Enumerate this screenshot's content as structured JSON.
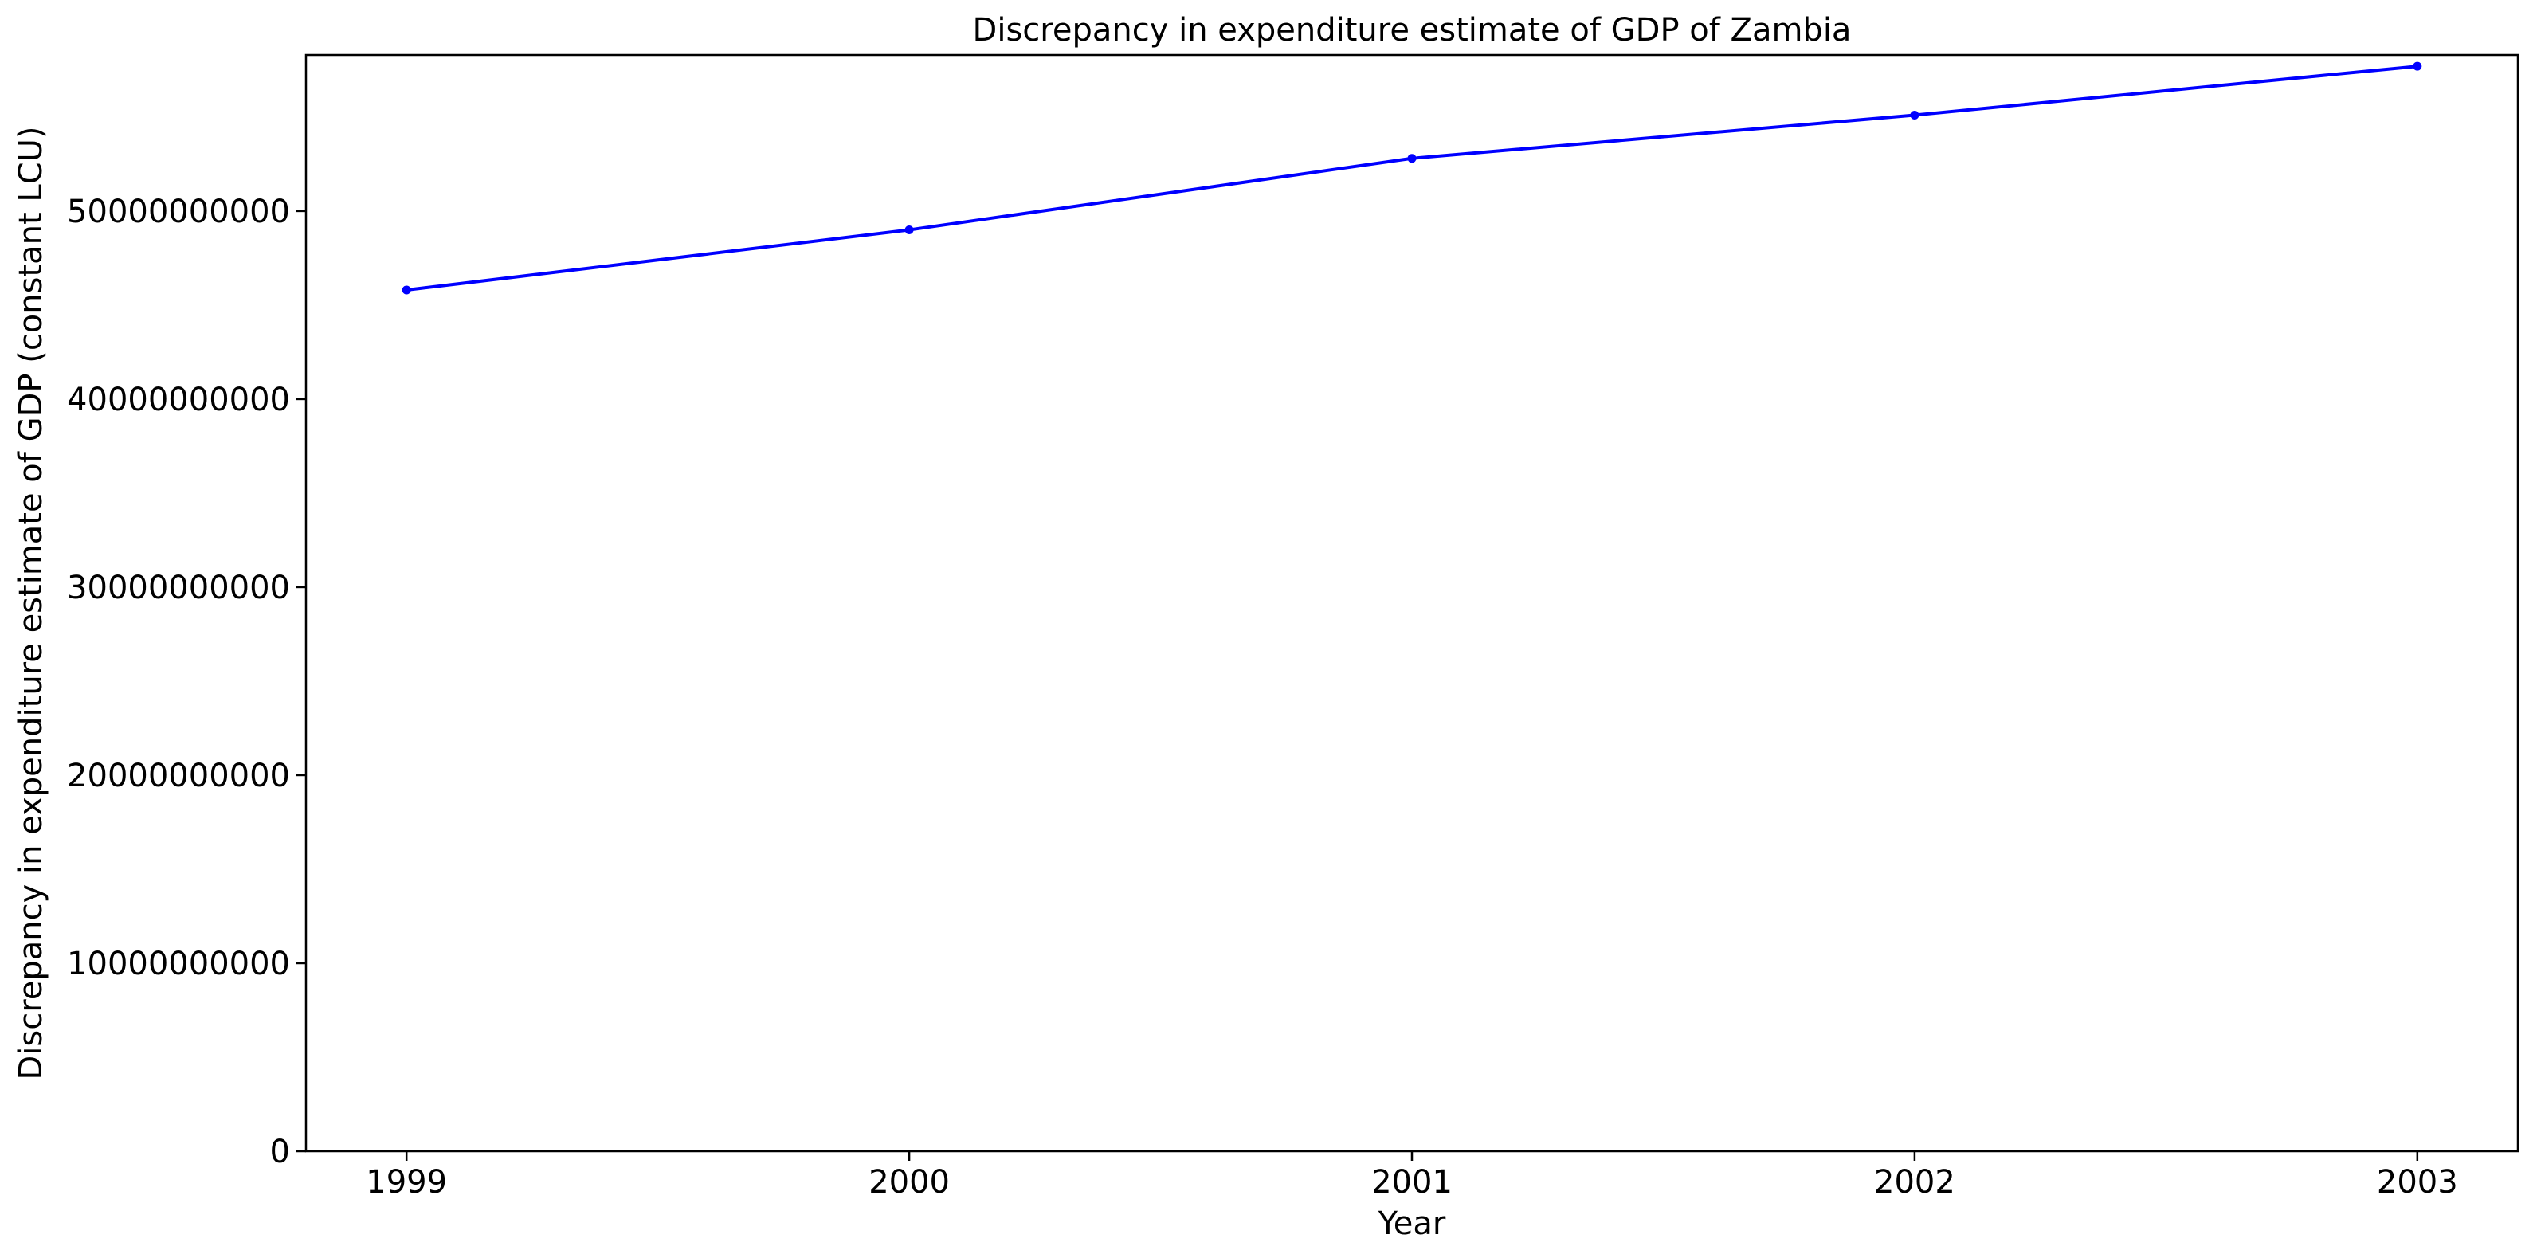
{
  "chart_data": {
    "type": "line",
    "title": "Discrepancy in expenditure estimate of GDP of Zambia",
    "xlabel": "Year",
    "ylabel": "Discrepancy in expenditure estimate of GDP (constant LCU)",
    "x": [
      "1999",
      "2000",
      "2001",
      "2002",
      "2003"
    ],
    "series": [
      {
        "color": "#0000ff",
        "marker": "circle",
        "values": [
          45800000000,
          49000000000,
          52800000000,
          55100000000,
          57700000000
        ]
      }
    ],
    "yticks": [
      0,
      10000000000,
      20000000000,
      30000000000,
      40000000000,
      50000000000
    ],
    "ytick_labels": [
      "0",
      "10000000000",
      "20000000000",
      "30000000000",
      "40000000000",
      "50000000000"
    ],
    "ylim": [
      0,
      58300000000
    ],
    "xlim": [
      -0.2,
      4.2
    ],
    "grid": false,
    "legend": "none"
  }
}
